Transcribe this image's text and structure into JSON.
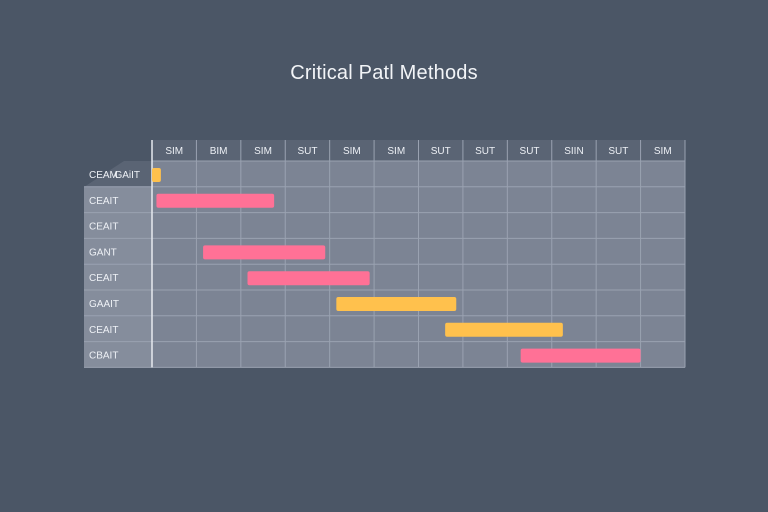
{
  "chart_data": {
    "type": "gantt",
    "title": "Critical Patl Methods",
    "corner_label": "GAiIT",
    "columns": [
      "SIM",
      "BIM",
      "SIM",
      "SUT",
      "SIM",
      "SIM",
      "SUT",
      "SUT",
      "SUT",
      "SIIN",
      "SUT",
      "SIM"
    ],
    "rows": [
      "CEAM",
      "CEAIT",
      "CEAIT",
      "GANT",
      "CEAIT",
      "GAAIT",
      "CEAIT",
      "CBAIT"
    ],
    "tasks": [
      {
        "row": 0,
        "start": 0.0,
        "end": 0.2,
        "color": "#ffc14d"
      },
      {
        "row": 1,
        "start": 0.1,
        "end": 2.75,
        "color": "#ff7196"
      },
      {
        "row": 3,
        "start": 1.15,
        "end": 3.9,
        "color": "#ff7196"
      },
      {
        "row": 4,
        "start": 2.15,
        "end": 4.9,
        "color": "#ff7196"
      },
      {
        "row": 5,
        "start": 4.15,
        "end": 6.85,
        "color": "#ffc14d"
      },
      {
        "row": 6,
        "start": 6.6,
        "end": 9.25,
        "color": "#ffc14d"
      },
      {
        "row": 7,
        "start": 8.3,
        "end": 11.0,
        "color": "#ff7196"
      }
    ],
    "colors": {
      "background": "#4b5666",
      "header": "#5a6474",
      "grid_cell": "#7c8494",
      "label_column": "#858d9c",
      "grid_line": "#9aa2b1",
      "critical": "#ff7196",
      "non_critical": "#ffc14d"
    }
  }
}
